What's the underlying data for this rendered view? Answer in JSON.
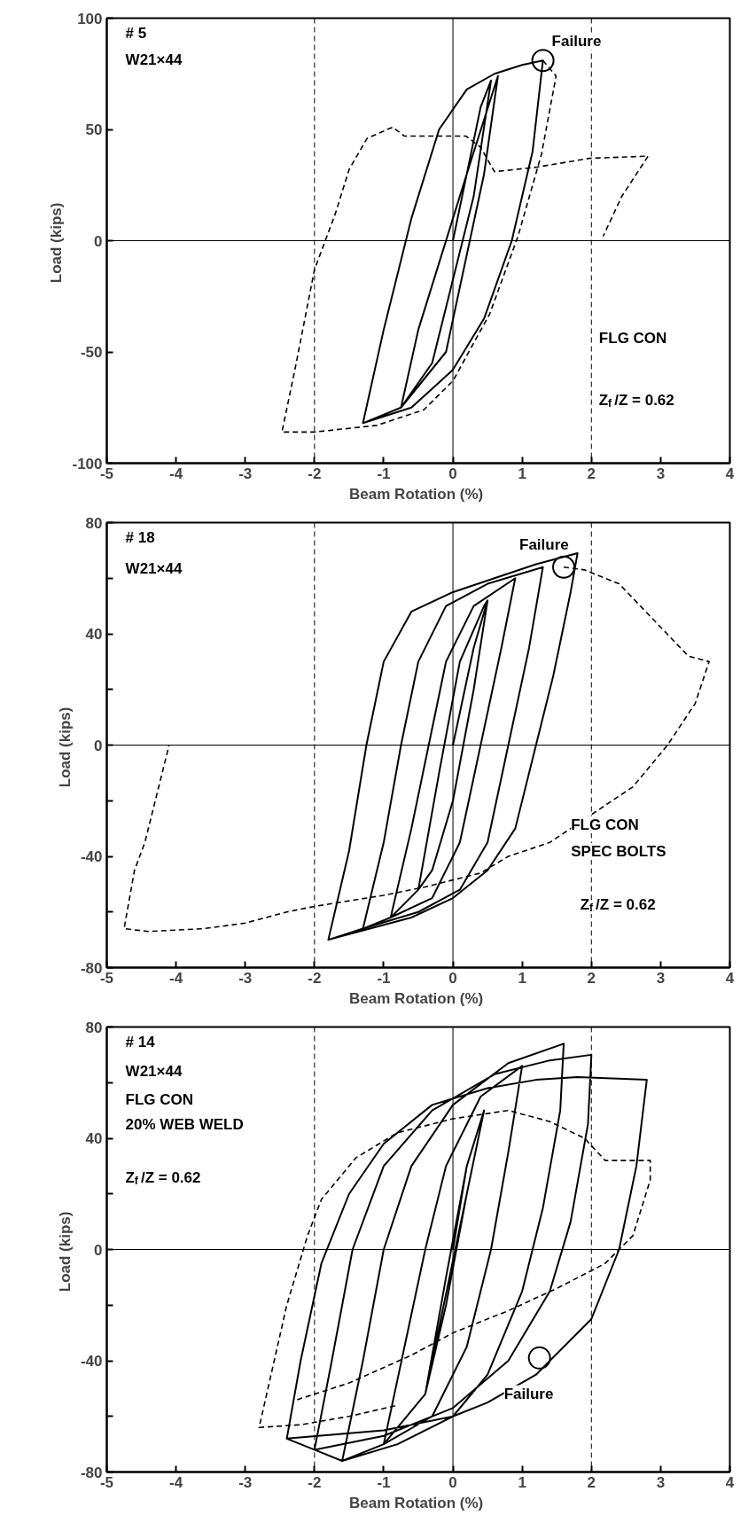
{
  "chart_data": [
    {
      "type": "line",
      "xlabel": "Beam Rotation  (%)",
      "ylabel": "Load  (kips)",
      "xlim": [
        -5,
        4
      ],
      "xticks": [
        -5,
        -4,
        -3,
        -2,
        -1,
        0,
        1,
        2,
        3,
        4
      ],
      "ylim": [
        -100,
        100
      ],
      "yticks": [
        -100,
        -50,
        0,
        50,
        100
      ],
      "grid": false,
      "series": [
        {
          "line_style": "solid",
          "color": "#000000",
          "x": [
            0,
            0.4,
            0.55,
            0.3,
            -0.3,
            -0.75,
            -0.5,
            0.2,
            0.65,
            0.45,
            -0.1,
            -0.75,
            -1.3,
            -1.0,
            -0.6,
            -0.2,
            0.2,
            0.6,
            1.0,
            1.3,
            1.15,
            0.85,
            0.45,
            0.0,
            -0.6,
            -1.3
          ],
          "values": [
            0,
            60,
            72,
            20,
            -55,
            -75,
            -40,
            30,
            74,
            30,
            -50,
            -75,
            -82,
            -40,
            10,
            50,
            68,
            75,
            79,
            81,
            40,
            0,
            -35,
            -58,
            -75,
            -82
          ]
        },
        {
          "line_style": "dashed",
          "color": "#000000",
          "x": [
            1.3,
            1.49,
            1.28,
            0.94,
            0.53,
            0,
            -0.42,
            -1.1,
            -2,
            -2.47,
            -2.27,
            -2,
            -1.7,
            -1.5,
            -1.24,
            -0.87,
            -0.7,
            0.19,
            0.4,
            0.6,
            1.2,
            1.97,
            2.82,
            2.44,
            2.17
          ],
          "values": [
            81,
            74,
            39,
            2,
            -33,
            -63,
            -76,
            -83,
            -86,
            -86,
            -56,
            -13,
            12,
            32,
            46,
            51,
            47,
            47,
            42,
            31,
            33,
            37,
            38,
            20,
            2
          ]
        },
        {
          "type": "scatter",
          "marker": "circle",
          "color": "#000000",
          "x": [
            1.3
          ],
          "values": [
            81
          ]
        }
      ],
      "ref_lines": [
        {
          "axis": "x",
          "value": -2,
          "line_style": "dashed"
        },
        {
          "axis": "x",
          "value": 2,
          "line_style": "dashed"
        },
        {
          "axis": "x",
          "value": 0,
          "line_style": "solid"
        },
        {
          "axis": "y",
          "value": 0,
          "line_style": "solid"
        }
      ],
      "annotations": [
        "# 5",
        "W21×44",
        "FLG CON",
        "Z$_{f}$/Z = 0.62",
        {
          "text": "Failure",
          "x": 1.3,
          "y": 81
        }
      ]
    },
    {
      "type": "line",
      "xlabel": "Beam Rotation  (%)",
      "ylabel": "Load  (kips)",
      "xlim": [
        -5,
        4
      ],
      "xticks": [
        -5,
        -4,
        -3,
        -2,
        -1,
        0,
        1,
        2,
        3,
        4
      ],
      "ylim": [
        -80,
        80
      ],
      "yticks": [
        -80,
        {
          "value": -60,
          "label": null
        },
        -40,
        {
          "value": -20,
          "label": null
        },
        0,
        {
          "value": 20,
          "label": null
        },
        40,
        {
          "value": 60,
          "label": null
        },
        80
      ],
      "grid": false,
      "series": [
        {
          "line_style": "solid",
          "color": "#000000",
          "x": [
            0,
            0.3,
            0.5,
            0.3,
            0,
            -0.3,
            -0.5,
            -0.2,
            0.1,
            0.45,
            0.5,
            0.3,
            0,
            -0.3,
            -0.5,
            -0.9,
            -0.6,
            -0.35,
            -0.1,
            0.3,
            0.9,
            0.7,
            0.4,
            0.1,
            -0.3,
            -0.9,
            -1.3,
            -1.0,
            -0.75,
            -0.5,
            -0.1,
            0.5,
            1.3,
            1.1,
            0.8,
            0.5,
            0.1,
            -0.5,
            -1.3,
            -1.8,
            -1.5,
            -1.25,
            -1.0,
            -0.6,
            0,
            0.6,
            1.2,
            1.8,
            1.7,
            1.45,
            1.2,
            0.9,
            0.5,
            0,
            -0.6,
            -1.2,
            -1.8
          ],
          "values": [
            0,
            35,
            52,
            20,
            -20,
            -45,
            -52,
            -10,
            30,
            50,
            52,
            20,
            -20,
            -45,
            -52,
            -62,
            -30,
            0,
            30,
            50,
            60,
            35,
            0,
            -35,
            -55,
            -62,
            -66,
            -35,
            0,
            30,
            50,
            58,
            64,
            35,
            0,
            -35,
            -52,
            -60,
            -66,
            -70,
            -38,
            0,
            30,
            48,
            55,
            60,
            65,
            69,
            55,
            25,
            0,
            -30,
            -45,
            -55,
            -62,
            -66,
            -70
          ]
        },
        {
          "line_style": "dashed",
          "color": "#000000",
          "x": [
            1.6,
            1.9,
            2.4,
            2.9,
            3.4,
            3.7,
            3.5,
            3.1,
            2.6,
            2.0,
            1.4,
            0.8,
            0.4,
            -0.4,
            -1,
            -2,
            -2.4,
            -3,
            -3.6,
            -4.4,
            -4.75,
            -4.6,
            -4.45,
            -4.3,
            -4.1
          ],
          "values": [
            64,
            63,
            58,
            45,
            32,
            30,
            15,
            0,
            -15,
            -25,
            -35,
            -40,
            -46,
            -51,
            -54,
            -58,
            -60,
            -64,
            -66,
            -67,
            -66,
            -45,
            -35,
            -20,
            0
          ]
        },
        {
          "type": "scatter",
          "marker": "circle",
          "color": "#000000",
          "x": [
            1.6
          ],
          "values": [
            64
          ]
        }
      ],
      "ref_lines": [
        {
          "axis": "x",
          "value": -2,
          "line_style": "dashed"
        },
        {
          "axis": "x",
          "value": 2,
          "line_style": "dashed"
        },
        {
          "axis": "x",
          "value": 0,
          "line_style": "solid"
        },
        {
          "axis": "y",
          "value": 0,
          "line_style": "solid"
        }
      ],
      "annotations": [
        "# 18",
        "W21×44",
        "FLG CON",
        "SPEC BOLTS",
        "Z$_{f}$/Z = 0.62",
        {
          "text": "Failure",
          "x": 1.6,
          "y": 64
        }
      ]
    },
    {
      "type": "line",
      "xlabel": "Beam Rotation  (%)",
      "ylabel": "Load  (kips)",
      "xlim": [
        -5,
        4
      ],
      "xticks": [
        -5,
        -4,
        -3,
        -2,
        -1,
        0,
        1,
        2,
        3,
        4
      ],
      "ylim": [
        -80,
        80
      ],
      "yticks": [
        -80,
        {
          "value": -60,
          "label": null
        },
        -40,
        {
          "value": -20,
          "label": null
        },
        0,
        {
          "value": 20,
          "label": null
        },
        40,
        {
          "value": 60,
          "label": null
        },
        80
      ],
      "grid": false,
      "series": [
        {
          "line_style": "solid",
          "color": "#000000",
          "x": [
            0,
            0.2,
            0.45,
            0.2,
            -0.1,
            -0.4,
            -0.1,
            0.2,
            0.45,
            -0.4,
            -1.0,
            -0.7,
            -0.4,
            -0.1,
            0.4,
            1.0,
            0.8,
            0.55,
            0.2,
            -0.3,
            -1.0,
            -1.6,
            -1.3,
            -1.0,
            -0.6,
            0,
            0.8,
            1.6,
            1.55,
            1.3,
            1.0,
            0.5,
            0,
            -0.8,
            -1.6,
            -2.0,
            -1.75,
            -1.45,
            -1.0,
            -0.3,
            0.6,
            1.4,
            2.0,
            1.95,
            1.7,
            1.4,
            0.8,
            0,
            -1.0,
            -2.0,
            -2.4,
            -2.2,
            -1.9,
            -1.5,
            -1,
            -0.3,
            0.5,
            1.2,
            1.8,
            2.8,
            2.65,
            2.4,
            2.0,
            1.2,
            0.5,
            0,
            -1,
            -2.4
          ],
          "values": [
            0,
            30,
            50,
            20,
            -20,
            -52,
            -10,
            30,
            50,
            -52,
            -70,
            -35,
            0,
            30,
            55,
            66,
            35,
            0,
            -35,
            -60,
            -70,
            -76,
            -40,
            0,
            30,
            52,
            67,
            74,
            50,
            15,
            -15,
            -45,
            -60,
            -70,
            -76,
            -72,
            -40,
            0,
            30,
            50,
            63,
            68,
            70,
            45,
            10,
            -15,
            -40,
            -57,
            -67,
            -72,
            -68,
            -40,
            -5,
            20,
            38,
            52,
            58,
            61,
            62,
            61,
            30,
            0,
            -25,
            -45,
            -55,
            -60,
            -65,
            -68
          ]
        },
        {
          "line_style": "dashed",
          "color": "#000000",
          "x": [
            -2.25,
            -1.5,
            -0.6,
            0,
            0.8,
            1.5,
            2.2,
            2.6,
            2.85,
            2.85,
            2.2,
            1.9,
            1.4,
            0.8,
            0,
            -0.8,
            -1.4,
            -1.9,
            -2.1,
            -2.4,
            -2.8,
            -2.2,
            -1.5,
            -0.8
          ],
          "values": [
            -54,
            -48,
            -38,
            -30,
            -22,
            -14,
            -5,
            5,
            25,
            32,
            32,
            40,
            46,
            50,
            47,
            42,
            33,
            18,
            5,
            -20,
            -64,
            -63,
            -60,
            -56
          ]
        },
        {
          "type": "scatter",
          "marker": "circle",
          "color": "#000000",
          "x": [
            1.25
          ],
          "values": [
            -39
          ]
        }
      ],
      "ref_lines": [
        {
          "axis": "x",
          "value": -2,
          "line_style": "dashed"
        },
        {
          "axis": "x",
          "value": 2,
          "line_style": "dashed"
        },
        {
          "axis": "x",
          "value": 0,
          "line_style": "solid"
        },
        {
          "axis": "y",
          "value": 0,
          "line_style": "solid"
        }
      ],
      "annotations": [
        "# 14",
        "W21×44",
        "FLG CON",
        "20% WEB WELD",
        "Z$_{f}$/Z = 0.62",
        {
          "text": "Failure",
          "x": 1.25,
          "y": -39
        }
      ]
    }
  ]
}
